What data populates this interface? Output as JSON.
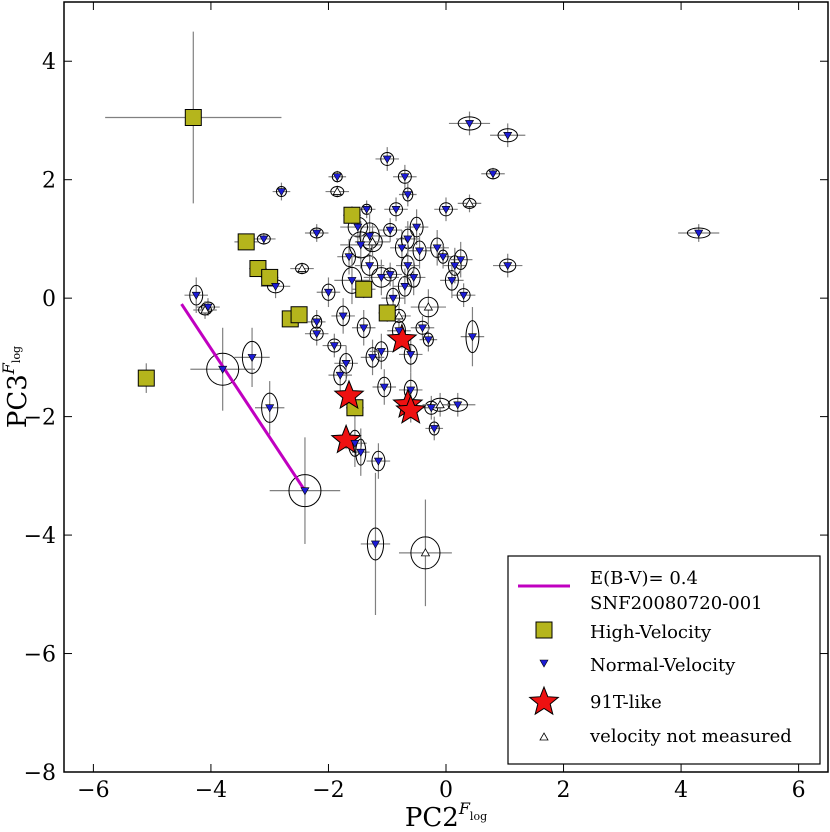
{
  "chart_data": {
    "type": "scatter",
    "xlabel": "PC2",
    "xlabel_sup": "F",
    "xlabel_sub": "log",
    "ylabel": "PC3",
    "ylabel_sup": "F",
    "ylabel_sub": "log",
    "xlim": [
      -6.5,
      6.5
    ],
    "ylim": [
      -8,
      5
    ],
    "xticks": [
      -6,
      -4,
      -2,
      0,
      2,
      4,
      6
    ],
    "yticks": [
      -8,
      -6,
      -4,
      -2,
      0,
      2,
      4
    ],
    "tick_labels_x": [
      "−6",
      "−4",
      "−2",
      "0",
      "2",
      "4",
      "6"
    ],
    "tick_labels_y": [
      "−8",
      "−6",
      "−4",
      "−2",
      "0",
      "2",
      "4"
    ],
    "colors": {
      "high_velocity": "#b5b51c",
      "normal_velocity": "#1c1cd6",
      "star": "#ee1111",
      "line": "#c000c0",
      "errorbar": "#808080"
    },
    "legend": {
      "position": "lower-right",
      "entries": [
        {
          "key": "line",
          "label": "E(B-V)= 0.4"
        },
        {
          "key": "line-cont",
          "label": "SNF20080720-001"
        },
        {
          "key": "high",
          "label": "High-Velocity"
        },
        {
          "key": "normal",
          "label": "Normal-Velocity"
        },
        {
          "key": "star",
          "label": "91T-like"
        },
        {
          "key": "unmeasured",
          "label": "velocity not measured"
        }
      ]
    },
    "reddening_line": {
      "label": "E(B-V)= 0.4 SNF20080720-001",
      "x": [
        -4.5,
        -2.4
      ],
      "y": [
        -0.1,
        -3.25
      ]
    },
    "series": [
      {
        "name": "High-Velocity",
        "marker": "square",
        "points": [
          {
            "x": -4.3,
            "y": 3.05,
            "xerr": 1.5,
            "yerr": 1.45
          },
          {
            "x": -5.1,
            "y": -1.35,
            "xerr": 0,
            "yerr": 0.25
          },
          {
            "x": -3.4,
            "y": 0.95,
            "xerr": 0.2,
            "yerr": 0.1
          },
          {
            "x": -3.2,
            "y": 0.5,
            "xerr": 0.15,
            "yerr": 0.1
          },
          {
            "x": -3.0,
            "y": 0.35,
            "xerr": 0.15,
            "yerr": 0.1
          },
          {
            "x": -2.65,
            "y": -0.35,
            "xerr": 0.1,
            "yerr": 0.1
          },
          {
            "x": -2.5,
            "y": -0.28,
            "xerr": 0.1,
            "yerr": 0.1
          },
          {
            "x": -1.6,
            "y": 1.4,
            "xerr": 0.15,
            "yerr": 0.15
          },
          {
            "x": -1.4,
            "y": 0.15,
            "xerr": 0.2,
            "yerr": 0.15
          },
          {
            "x": -1.0,
            "y": -0.25,
            "xerr": 0.15,
            "yerr": 0.15
          },
          {
            "x": -1.55,
            "y": -1.85,
            "xerr": 0.15,
            "yerr": 0.2
          }
        ]
      },
      {
        "name": "91T-like",
        "marker": "star",
        "points": [
          {
            "x": -0.75,
            "y": -0.7,
            "xerr": 0.1,
            "yerr": 0.15
          },
          {
            "x": -1.65,
            "y": -1.65,
            "xerr": 0.1,
            "yerr": 0.15
          },
          {
            "x": -0.65,
            "y": -1.8,
            "xerr": 0.1,
            "yerr": 0.2
          },
          {
            "x": -0.6,
            "y": -1.9,
            "xerr": 0.1,
            "yerr": 0.2
          },
          {
            "x": -1.7,
            "y": -2.4,
            "xerr": 0.1,
            "yerr": 0.15
          }
        ]
      },
      {
        "name": "Normal-Velocity",
        "marker": "triangle-down",
        "points": [
          {
            "x": -4.25,
            "y": 0.05,
            "xerr": 0.2,
            "yerr": 0.3
          },
          {
            "x": -4.05,
            "y": -0.15,
            "xerr": 0.2,
            "yerr": 0.15
          },
          {
            "x": -3.8,
            "y": -1.2,
            "xerr": 0.55,
            "yerr": 0.7
          },
          {
            "x": -3.3,
            "y": -1.0,
            "xerr": 0.3,
            "yerr": 0.5
          },
          {
            "x": -3.1,
            "y": 1.0,
            "xerr": 0.2,
            "yerr": 0.1
          },
          {
            "x": -3.0,
            "y": -1.85,
            "xerr": 0.25,
            "yerr": 0.45
          },
          {
            "x": -2.9,
            "y": 0.2,
            "xerr": 0.25,
            "yerr": 0.2
          },
          {
            "x": -2.8,
            "y": 1.8,
            "xerr": 0.15,
            "yerr": 0.15
          },
          {
            "x": -2.4,
            "y": -3.25,
            "xerr": 0.6,
            "yerr": 0.9
          },
          {
            "x": -2.2,
            "y": 1.1,
            "xerr": 0.2,
            "yerr": 0.15
          },
          {
            "x": -2.2,
            "y": -0.4,
            "xerr": 0.15,
            "yerr": 0.2
          },
          {
            "x": -2.2,
            "y": -0.6,
            "xerr": 0.2,
            "yerr": 0.2
          },
          {
            "x": -2.0,
            "y": 0.1,
            "xerr": 0.2,
            "yerr": 0.25
          },
          {
            "x": -1.9,
            "y": -0.8,
            "xerr": 0.2,
            "yerr": 0.2
          },
          {
            "x": -1.85,
            "y": 2.05,
            "xerr": 0.15,
            "yerr": 0.1
          },
          {
            "x": -1.8,
            "y": -1.3,
            "xerr": 0.2,
            "yerr": 0.3
          },
          {
            "x": -1.75,
            "y": -0.3,
            "xerr": 0.2,
            "yerr": 0.3
          },
          {
            "x": -1.7,
            "y": -1.1,
            "xerr": 0.2,
            "yerr": 0.3
          },
          {
            "x": -1.65,
            "y": 0.7,
            "xerr": 0.2,
            "yerr": 0.3
          },
          {
            "x": -1.6,
            "y": 0.3,
            "xerr": 0.3,
            "yerr": 0.4
          },
          {
            "x": -1.55,
            "y": -2.45,
            "xerr": 0.2,
            "yerr": 0.4
          },
          {
            "x": -1.5,
            "y": 1.2,
            "xerr": 0.3,
            "yerr": 0.3
          },
          {
            "x": -1.45,
            "y": 0.9,
            "xerr": 0.35,
            "yerr": 0.4
          },
          {
            "x": -1.45,
            "y": -2.6,
            "xerr": 0.15,
            "yerr": 0.4
          },
          {
            "x": -1.4,
            "y": -0.5,
            "xerr": 0.2,
            "yerr": 0.3
          },
          {
            "x": -1.35,
            "y": 1.5,
            "xerr": 0.15,
            "yerr": 0.15
          },
          {
            "x": -1.3,
            "y": 1.05,
            "xerr": 0.3,
            "yerr": 0.4
          },
          {
            "x": -1.3,
            "y": 0.55,
            "xerr": 0.25,
            "yerr": 0.3
          },
          {
            "x": -1.25,
            "y": -1.0,
            "xerr": 0.2,
            "yerr": 0.3
          },
          {
            "x": -1.2,
            "y": -4.15,
            "xerr": 0.25,
            "yerr": 1.2
          },
          {
            "x": -1.15,
            "y": -2.75,
            "xerr": 0.2,
            "yerr": 0.3
          },
          {
            "x": -1.1,
            "y": 0.35,
            "xerr": 0.3,
            "yerr": 0.3
          },
          {
            "x": -1.1,
            "y": -0.9,
            "xerr": 0.2,
            "yerr": 0.3
          },
          {
            "x": -1.05,
            "y": -1.5,
            "xerr": 0.2,
            "yerr": 0.3
          },
          {
            "x": -1.0,
            "y": 2.35,
            "xerr": 0.2,
            "yerr": 0.2
          },
          {
            "x": -0.95,
            "y": 1.15,
            "xerr": 0.2,
            "yerr": 0.2
          },
          {
            "x": -0.95,
            "y": 0.4,
            "xerr": 0.2,
            "yerr": 0.2
          },
          {
            "x": -0.9,
            "y": 0.0,
            "xerr": 0.2,
            "yerr": 0.3
          },
          {
            "x": -0.85,
            "y": 1.5,
            "xerr": 0.2,
            "yerr": 0.2
          },
          {
            "x": -0.8,
            "y": -0.55,
            "xerr": 0.2,
            "yerr": 0.3
          },
          {
            "x": -0.75,
            "y": 0.85,
            "xerr": 0.2,
            "yerr": 0.3
          },
          {
            "x": -0.7,
            "y": 2.05,
            "xerr": 0.2,
            "yerr": 0.2
          },
          {
            "x": -0.7,
            "y": 0.2,
            "xerr": 0.2,
            "yerr": 0.3
          },
          {
            "x": -0.65,
            "y": 1.75,
            "xerr": 0.15,
            "yerr": 0.2
          },
          {
            "x": -0.65,
            "y": 1.0,
            "xerr": 0.2,
            "yerr": 0.3
          },
          {
            "x": -0.65,
            "y": 0.55,
            "xerr": 0.2,
            "yerr": 0.3
          },
          {
            "x": -0.6,
            "y": -0.95,
            "xerr": 0.2,
            "yerr": 0.3
          },
          {
            "x": -0.6,
            "y": -1.55,
            "xerr": 0.2,
            "yerr": 0.3
          },
          {
            "x": -0.55,
            "y": 0.35,
            "xerr": 0.2,
            "yerr": 0.3
          },
          {
            "x": -0.5,
            "y": 1.2,
            "xerr": 0.2,
            "yerr": 0.3
          },
          {
            "x": -0.45,
            "y": 0.8,
            "xerr": 0.2,
            "yerr": 0.3
          },
          {
            "x": -0.4,
            "y": -0.5,
            "xerr": 0.2,
            "yerr": 0.2
          },
          {
            "x": -0.3,
            "y": -0.7,
            "xerr": 0.15,
            "yerr": 0.2
          },
          {
            "x": -0.25,
            "y": -1.85,
            "xerr": 0.2,
            "yerr": 0.2
          },
          {
            "x": -0.2,
            "y": -2.2,
            "xerr": 0.15,
            "yerr": 0.2
          },
          {
            "x": -0.15,
            "y": 0.85,
            "xerr": 0.2,
            "yerr": 0.3
          },
          {
            "x": -0.05,
            "y": 0.7,
            "xerr": 0.15,
            "yerr": 0.2
          },
          {
            "x": 0.0,
            "y": 1.5,
            "xerr": 0.2,
            "yerr": 0.2
          },
          {
            "x": 0.1,
            "y": 0.3,
            "xerr": 0.2,
            "yerr": 0.3
          },
          {
            "x": 0.15,
            "y": 0.55,
            "xerr": 0.2,
            "yerr": 0.3
          },
          {
            "x": 0.2,
            "y": -1.8,
            "xerr": 0.3,
            "yerr": 0.2
          },
          {
            "x": 0.25,
            "y": 0.65,
            "xerr": 0.2,
            "yerr": 0.3
          },
          {
            "x": 0.3,
            "y": 0.05,
            "xerr": 0.2,
            "yerr": 0.2
          },
          {
            "x": 0.4,
            "y": 2.95,
            "xerr": 0.35,
            "yerr": 0.2
          },
          {
            "x": 0.45,
            "y": -0.65,
            "xerr": 0.2,
            "yerr": 0.5
          },
          {
            "x": 0.8,
            "y": 2.1,
            "xerr": 0.2,
            "yerr": 0.1
          },
          {
            "x": 1.05,
            "y": 2.75,
            "xerr": 0.3,
            "yerr": 0.2
          },
          {
            "x": 1.05,
            "y": 0.55,
            "xerr": 0.25,
            "yerr": 0.2
          },
          {
            "x": 4.3,
            "y": 1.1,
            "xerr": 0.35,
            "yerr": 0.15
          }
        ]
      },
      {
        "name": "velocity not measured",
        "marker": "triangle-up",
        "points": [
          {
            "x": -4.1,
            "y": -0.2,
            "xerr": 0.2,
            "yerr": 0.15
          },
          {
            "x": -2.45,
            "y": 0.5,
            "xerr": 0.2,
            "yerr": 0.1
          },
          {
            "x": -1.85,
            "y": 1.8,
            "xerr": 0.2,
            "yerr": 0.1
          },
          {
            "x": -1.25,
            "y": 0.95,
            "xerr": 0.3,
            "yerr": 0.3
          },
          {
            "x": -0.8,
            "y": -0.3,
            "xerr": 0.2,
            "yerr": 0.2
          },
          {
            "x": -0.35,
            "y": -4.3,
            "xerr": 0.45,
            "yerr": 0.9
          },
          {
            "x": -0.3,
            "y": -0.15,
            "xerr": 0.3,
            "yerr": 0.3
          },
          {
            "x": -0.1,
            "y": -1.8,
            "xerr": 0.3,
            "yerr": 0.2
          },
          {
            "x": 0.4,
            "y": 1.6,
            "xerr": 0.2,
            "yerr": 0.15
          }
        ]
      }
    ]
  }
}
